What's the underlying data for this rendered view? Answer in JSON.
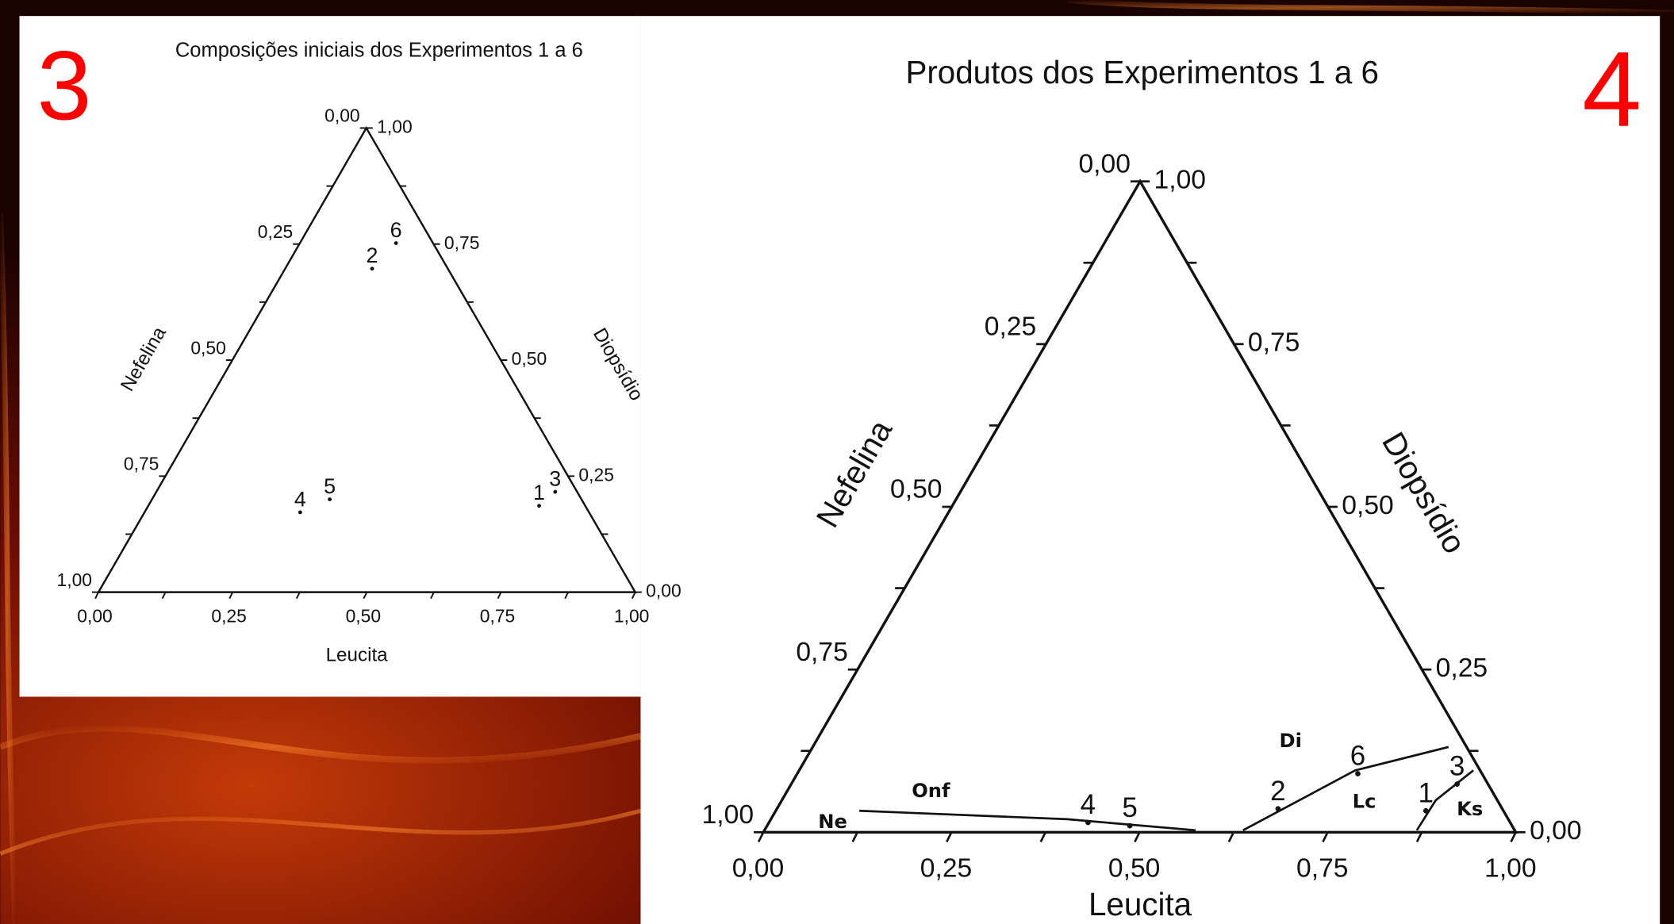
{
  "chart_data": [
    {
      "type": "ternary",
      "panel_label": "3",
      "title": "Composições iniciais dos Experimentos 1 a 6",
      "axes": {
        "bottom": {
          "label": "Leucita",
          "ticks": [
            {
              "value": 0,
              "label": "0,00"
            },
            {
              "value": 0.25,
              "label": "0,25"
            },
            {
              "value": 0.5,
              "label": "0,50"
            },
            {
              "value": 0.75,
              "label": "0,75"
            },
            {
              "value": 1,
              "label": "1,00"
            }
          ]
        },
        "right": {
          "label": "Diopsídio",
          "ticks": [
            {
              "value": 0,
              "label": "0,00"
            },
            {
              "value": 0.25,
              "label": "0,25"
            },
            {
              "value": 0.5,
              "label": "0,50"
            },
            {
              "value": 0.75,
              "label": "0,75"
            },
            {
              "value": 1,
              "label": "1,00"
            }
          ]
        },
        "left": {
          "label": "Nefelina",
          "ticks": [
            {
              "value": 0,
              "label": "0,00"
            },
            {
              "value": 0.25,
              "label": "0,25"
            },
            {
              "value": 0.5,
              "label": "0,50"
            },
            {
              "value": 0.75,
              "label": "0,75"
            },
            {
              "value": 1,
              "label": "1,00"
            }
          ]
        }
      },
      "points": {
        "names": [
          "1",
          "2",
          "3",
          "4",
          "5",
          "6"
        ],
        "leucita": [
          0.728,
          0.162,
          0.743,
          0.29,
          0.331,
          0.179
        ],
        "diopsidio": [
          0.186,
          0.697,
          0.216,
          0.172,
          0.2,
          0.752
        ]
      }
    },
    {
      "type": "ternary",
      "panel_label": "4",
      "title": "Produtos dos Experimentos 1 a 6",
      "axes": {
        "bottom": {
          "label": "Leucita",
          "ticks": [
            {
              "value": 0,
              "label": "0,00"
            },
            {
              "value": 0.25,
              "label": "0,25"
            },
            {
              "value": 0.5,
              "label": "0,50"
            },
            {
              "value": 0.75,
              "label": "0,75"
            },
            {
              "value": 1,
              "label": "1,00"
            }
          ]
        },
        "right": {
          "label": "Diopsídio",
          "ticks": [
            {
              "value": 0,
              "label": "0,00"
            },
            {
              "value": 0.25,
              "label": "0,25"
            },
            {
              "value": 0.5,
              "label": "0,50"
            },
            {
              "value": 0.75,
              "label": "0,75"
            },
            {
              "value": 1,
              "label": "1,00"
            }
          ]
        },
        "left": {
          "label": "Nefelina",
          "ticks": [
            {
              "value": 0,
              "label": "0,00"
            },
            {
              "value": 0.25,
              "label": "0,25"
            },
            {
              "value": 0.5,
              "label": "0,50"
            },
            {
              "value": 0.75,
              "label": "0,75"
            },
            {
              "value": 1,
              "label": "1,00"
            }
          ]
        }
      },
      "points": {
        "names": [
          "1",
          "2",
          "3",
          "4",
          "5",
          "6"
        ],
        "leucita": [
          0.864,
          0.666,
          0.885,
          0.424,
          0.482,
          0.745
        ],
        "diopsidio": [
          0.033,
          0.036,
          0.074,
          0.015,
          0.01,
          0.09
        ]
      },
      "boundaries": [
        {
          "leucita": [
            0.111,
            0.394,
            0.573
          ],
          "diopsidio": [
            0.033,
            0.02,
            0.003
          ]
        },
        {
          "leucita": [
            0.636,
            0.739,
            0.845
          ],
          "diopsidio": [
            0.003,
            0.095,
            0.131
          ]
        },
        {
          "leucita": [
            0.867,
            0.869,
            0.896
          ],
          "diopsidio": [
            0.003,
            0.049,
            0.095
          ]
        }
      ],
      "regions": [
        "Ne",
        "Onf",
        "Di",
        "Lc",
        "Ks"
      ]
    }
  ]
}
